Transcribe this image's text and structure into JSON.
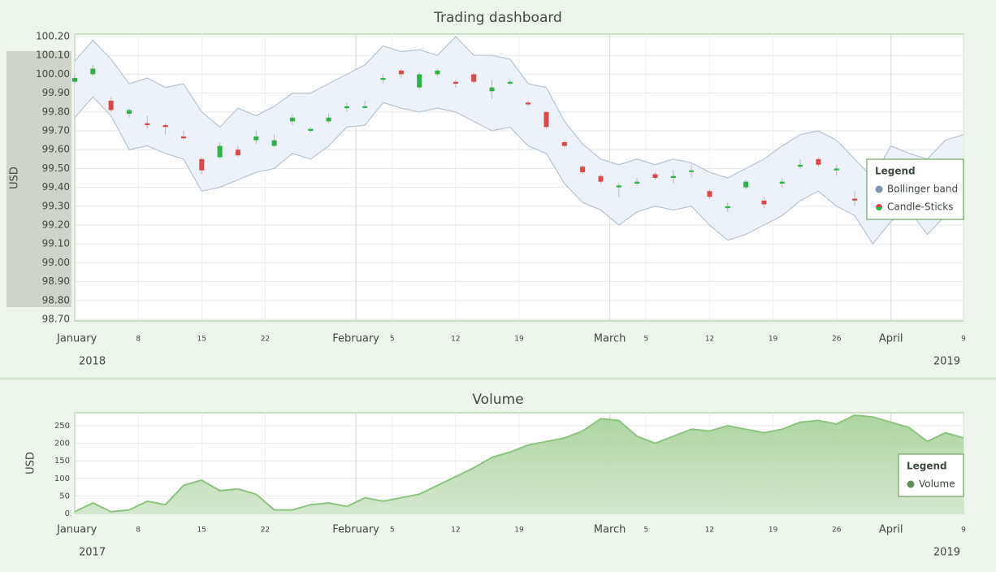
{
  "chart_data": [
    {
      "type": "candlestick",
      "title": "Trading dashboard",
      "y_label": "USD",
      "year_labels": [
        "2018",
        "2019"
      ],
      "legend_title": "Legend",
      "legend_position": "right",
      "xlim": [
        "01-01",
        "04-09"
      ],
      "xticks": [
        {
          "value": "01-01",
          "label": "January"
        },
        {
          "value": "01-08",
          "label": "8"
        },
        {
          "value": "01-15",
          "label": "15"
        },
        {
          "value": "01-22",
          "label": "22"
        },
        {
          "value": "02-01",
          "label": "February"
        },
        {
          "value": "02-05",
          "label": "5"
        },
        {
          "value": "02-12",
          "label": "12"
        },
        {
          "value": "02-19",
          "label": "19"
        },
        {
          "value": "03-01",
          "label": "March"
        },
        {
          "value": "03-05",
          "label": "5"
        },
        {
          "value": "03-12",
          "label": "12"
        },
        {
          "value": "03-19",
          "label": "19"
        },
        {
          "value": "03-26",
          "label": "26"
        },
        {
          "value": "04-01",
          "label": "April"
        },
        {
          "value": "04-09",
          "label": "9"
        }
      ],
      "ylim": [
        98.7,
        100.2
      ],
      "yticks": [
        {
          "value": 98.7,
          "label": "98.70"
        },
        {
          "value": 98.8,
          "label": "98.80"
        },
        {
          "value": 98.9,
          "label": "98.90"
        },
        {
          "value": 99.0,
          "label": "99.00"
        },
        {
          "value": 99.1,
          "label": "99.10"
        },
        {
          "value": 99.2,
          "label": "99.20"
        },
        {
          "value": 99.3,
          "label": "99.30"
        },
        {
          "value": 99.4,
          "label": "99.40"
        },
        {
          "value": 99.5,
          "label": "99.50"
        },
        {
          "value": 99.6,
          "label": "99.60"
        },
        {
          "value": 99.7,
          "label": "99.70"
        },
        {
          "value": 99.8,
          "label": "99.80"
        },
        {
          "value": 99.9,
          "label": "99.90"
        },
        {
          "value": 100.0,
          "label": "100.00"
        },
        {
          "value": 100.1,
          "label": "100.10"
        },
        {
          "value": 100.2,
          "label": "100.20"
        }
      ],
      "grid": true,
      "series": [
        {
          "name": "Bollinger band",
          "type": "band",
          "color": "#7f93aa",
          "fill": "#edf2f8",
          "stroke": "#b6c3d1",
          "x": [
            "01-01",
            "01-03",
            "01-05",
            "01-07",
            "01-09",
            "01-11",
            "01-13",
            "01-15",
            "01-17",
            "01-19",
            "01-21",
            "01-23",
            "01-25",
            "01-27",
            "01-29",
            "01-31",
            "02-02",
            "02-04",
            "02-06",
            "02-08",
            "02-10",
            "02-12",
            "02-14",
            "02-16",
            "02-18",
            "02-20",
            "02-22",
            "02-24",
            "02-26",
            "02-28",
            "03-02",
            "03-04",
            "03-06",
            "03-08",
            "03-10",
            "03-12",
            "03-14",
            "03-16",
            "03-18",
            "03-20",
            "03-22",
            "03-24",
            "03-26",
            "03-28",
            "03-30",
            "04-01",
            "04-03",
            "04-05",
            "04-07",
            "04-09"
          ],
          "upper": [
            100.07,
            100.18,
            100.08,
            99.95,
            99.98,
            99.93,
            99.95,
            99.8,
            99.72,
            99.82,
            99.78,
            99.83,
            99.9,
            99.9,
            99.95,
            100.0,
            100.05,
            100.15,
            100.12,
            100.13,
            100.1,
            100.2,
            100.1,
            100.1,
            100.08,
            99.95,
            99.93,
            99.75,
            99.63,
            99.55,
            99.52,
            99.55,
            99.52,
            99.55,
            99.53,
            99.48,
            99.45,
            99.5,
            99.55,
            99.62,
            99.68,
            99.7,
            99.65,
            99.55,
            99.45,
            99.62,
            99.58,
            99.55,
            99.65,
            99.68
          ],
          "lower": [
            99.77,
            99.88,
            99.78,
            99.6,
            99.62,
            99.58,
            99.55,
            99.38,
            99.4,
            99.44,
            99.48,
            99.5,
            99.58,
            99.55,
            99.62,
            99.72,
            99.73,
            99.85,
            99.82,
            99.8,
            99.82,
            99.8,
            99.75,
            99.7,
            99.72,
            99.62,
            99.58,
            99.42,
            99.32,
            99.28,
            99.2,
            99.27,
            99.3,
            99.28,
            99.3,
            99.2,
            99.12,
            99.15,
            99.2,
            99.25,
            99.33,
            99.38,
            99.3,
            99.25,
            99.1,
            99.22,
            99.28,
            99.15,
            99.25,
            99.35
          ]
        },
        {
          "name": "Candle-Sticks",
          "type": "candlestick",
          "color": "#e0474c",
          "color_up": "#2db34a",
          "color_down": "#e0474c",
          "x": [
            "01-01",
            "01-03",
            "01-05",
            "01-07",
            "01-09",
            "01-11",
            "01-13",
            "01-15",
            "01-17",
            "01-19",
            "01-21",
            "01-23",
            "01-25",
            "01-27",
            "01-29",
            "01-31",
            "02-02",
            "02-04",
            "02-06",
            "02-08",
            "02-10",
            "02-12",
            "02-14",
            "02-16",
            "02-18",
            "02-20",
            "02-22",
            "02-24",
            "02-26",
            "02-28",
            "03-02",
            "03-04",
            "03-06",
            "03-08",
            "03-10",
            "03-12",
            "03-14",
            "03-16",
            "03-18",
            "03-20",
            "03-22",
            "03-24",
            "03-26",
            "03-28"
          ],
          "open": [
            99.96,
            100.0,
            99.86,
            99.79,
            99.74,
            99.73,
            99.67,
            99.55,
            99.56,
            99.6,
            99.65,
            99.62,
            99.75,
            99.7,
            99.75,
            99.82,
            99.83,
            99.97,
            100.02,
            99.93,
            100.0,
            99.96,
            100.0,
            99.91,
            99.95,
            99.85,
            99.8,
            99.64,
            99.51,
            99.46,
            99.4,
            99.42,
            99.47,
            99.45,
            99.49,
            99.38,
            99.29,
            99.4,
            99.33,
            99.42,
            99.51,
            99.55,
            99.49,
            99.34
          ],
          "high": [
            100.0,
            100.05,
            99.88,
            99.82,
            99.78,
            99.74,
            99.7,
            99.56,
            99.64,
            99.62,
            99.7,
            99.68,
            99.79,
            99.72,
            99.79,
            99.85,
            99.86,
            100.0,
            100.03,
            100.01,
            100.03,
            99.97,
            100.01,
            99.97,
            99.97,
            99.86,
            99.8,
            99.65,
            99.52,
            99.47,
            99.42,
            99.45,
            99.48,
            99.49,
            99.52,
            99.39,
            99.32,
            99.44,
            99.35,
            99.45,
            99.55,
            99.56,
            99.52,
            99.38
          ],
          "low": [
            99.95,
            99.99,
            99.8,
            99.77,
            99.71,
            99.68,
            99.65,
            99.47,
            99.55,
            99.56,
            99.63,
            99.61,
            99.73,
            99.69,
            99.74,
            99.8,
            99.82,
            99.95,
            99.98,
            99.92,
            99.99,
            99.93,
            99.95,
            99.87,
            99.94,
            99.83,
            99.71,
            99.61,
            99.47,
            99.42,
            99.35,
            99.41,
            99.44,
            99.42,
            99.45,
            99.34,
            99.27,
            99.39,
            99.29,
            99.4,
            99.5,
            99.51,
            99.46,
            99.3
          ],
          "close": [
            99.98,
            100.03,
            99.81,
            99.81,
            99.73,
            99.72,
            99.66,
            99.49,
            99.62,
            99.57,
            99.67,
            99.65,
            99.77,
            99.71,
            99.77,
            99.83,
            99.83,
            99.98,
            100.0,
            100.0,
            100.02,
            99.95,
            99.96,
            99.93,
            99.96,
            99.84,
            99.72,
            99.62,
            99.48,
            99.43,
            99.41,
            99.43,
            99.45,
            99.46,
            99.49,
            99.35,
            99.3,
            99.43,
            99.31,
            99.43,
            99.52,
            99.52,
            99.5,
            99.33
          ]
        }
      ]
    },
    {
      "type": "area",
      "title": "Volume",
      "y_label": "USD",
      "year_labels": [
        "2017",
        "2019"
      ],
      "legend_title": "Legend",
      "legend_position": "right",
      "xlim": [
        "01-01",
        "04-09"
      ],
      "xticks": [
        {
          "value": "01-01",
          "label": "January"
        },
        {
          "value": "01-08",
          "label": "8"
        },
        {
          "value": "01-15",
          "label": "15"
        },
        {
          "value": "01-22",
          "label": "22"
        },
        {
          "value": "02-01",
          "label": "February"
        },
        {
          "value": "02-05",
          "label": "5"
        },
        {
          "value": "02-12",
          "label": "12"
        },
        {
          "value": "02-19",
          "label": "19"
        },
        {
          "value": "03-01",
          "label": "March"
        },
        {
          "value": "03-05",
          "label": "5"
        },
        {
          "value": "03-12",
          "label": "12"
        },
        {
          "value": "03-19",
          "label": "19"
        },
        {
          "value": "03-26",
          "label": "26"
        },
        {
          "value": "04-01",
          "label": "April"
        },
        {
          "value": "04-09",
          "label": "9"
        }
      ],
      "ylim": [
        0,
        287
      ],
      "yticks": [
        0,
        50,
        100,
        150,
        200,
        250
      ],
      "grid": true,
      "series": [
        {
          "name": "Volume",
          "type": "area",
          "color": "#5e9152",
          "fill": "#a8d39c",
          "stroke": "#8cc47f",
          "x": [
            "01-01",
            "01-03",
            "01-05",
            "01-07",
            "01-09",
            "01-11",
            "01-13",
            "01-15",
            "01-17",
            "01-19",
            "01-21",
            "01-23",
            "01-25",
            "01-27",
            "01-29",
            "01-31",
            "02-02",
            "02-04",
            "02-06",
            "02-08",
            "02-10",
            "02-12",
            "02-14",
            "02-16",
            "02-18",
            "02-20",
            "02-22",
            "02-24",
            "02-26",
            "02-28",
            "03-02",
            "03-04",
            "03-06",
            "03-08",
            "03-10",
            "03-12",
            "03-14",
            "03-16",
            "03-18",
            "03-20",
            "03-22",
            "03-24",
            "03-26",
            "03-28",
            "03-30",
            "04-01",
            "04-03",
            "04-05",
            "04-07",
            "04-09"
          ],
          "values": [
            5,
            30,
            5,
            10,
            35,
            25,
            80,
            95,
            65,
            70,
            55,
            10,
            10,
            25,
            30,
            20,
            45,
            35,
            45,
            55,
            80,
            105,
            130,
            160,
            175,
            195,
            205,
            215,
            235,
            270,
            265,
            220,
            200,
            220,
            240,
            235,
            250,
            240,
            230,
            240,
            260,
            265,
            255,
            280,
            275,
            260,
            245,
            205,
            230,
            215
          ]
        }
      ]
    }
  ]
}
